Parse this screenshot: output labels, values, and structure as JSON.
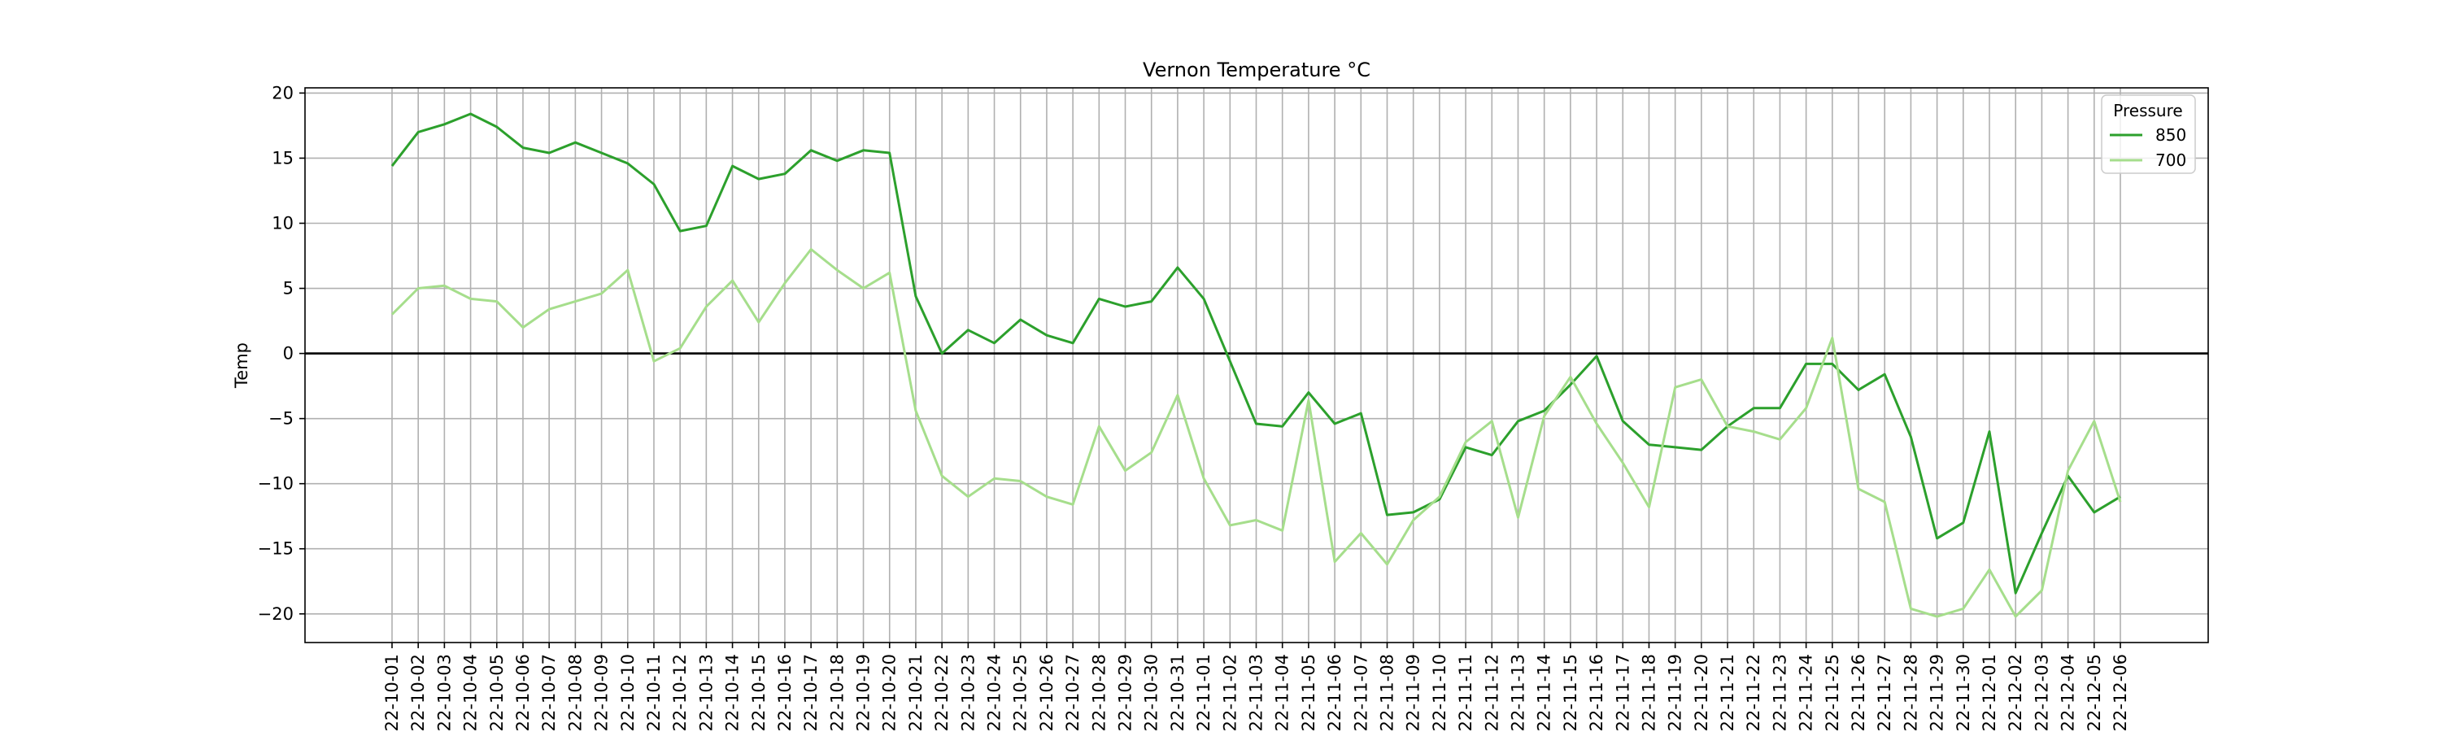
{
  "chart_data": {
    "type": "line",
    "title": "Vernon Temperature °C",
    "xlabel": "",
    "ylabel": "Temp",
    "ylim": [
      -22.2,
      20.4
    ],
    "yticks": [
      20,
      15,
      10,
      5,
      0,
      -5,
      -10,
      -15,
      -20
    ],
    "grid": true,
    "legend": {
      "title": "Pressure",
      "placement": "top-right"
    },
    "categories": [
      "22-10-01",
      "22-10-02",
      "22-10-03",
      "22-10-04",
      "22-10-05",
      "22-10-06",
      "22-10-07",
      "22-10-08",
      "22-10-09",
      "22-10-10",
      "22-10-11",
      "22-10-12",
      "22-10-13",
      "22-10-14",
      "22-10-15",
      "22-10-16",
      "22-10-17",
      "22-10-18",
      "22-10-19",
      "22-10-20",
      "22-10-21",
      "22-10-22",
      "22-10-23",
      "22-10-24",
      "22-10-25",
      "22-10-26",
      "22-10-27",
      "22-10-28",
      "22-10-29",
      "22-10-30",
      "22-10-31",
      "22-11-01",
      "22-11-02",
      "22-11-03",
      "22-11-04",
      "22-11-05",
      "22-11-06",
      "22-11-07",
      "22-11-08",
      "22-11-09",
      "22-11-10",
      "22-11-11",
      "22-11-12",
      "22-11-13",
      "22-11-14",
      "22-11-15",
      "22-11-16",
      "22-11-17",
      "22-11-18",
      "22-11-19",
      "22-11-20",
      "22-11-21",
      "22-11-22",
      "22-11-23",
      "22-11-24",
      "22-11-25",
      "22-11-26",
      "22-11-27",
      "22-11-28",
      "22-11-29",
      "22-11-30",
      "22-12-01",
      "22-12-02",
      "22-12-03",
      "22-12-04",
      "22-12-05",
      "22-12-06"
    ],
    "series": [
      {
        "name": "850",
        "color": "#2ca02c",
        "values": [
          14.4,
          17.0,
          17.6,
          18.4,
          17.4,
          15.8,
          15.4,
          16.2,
          15.4,
          14.6,
          13.0,
          9.4,
          9.8,
          14.4,
          13.4,
          13.8,
          15.6,
          14.8,
          15.6,
          15.4,
          4.4,
          0.0,
          1.8,
          0.8,
          2.6,
          1.4,
          0.8,
          4.2,
          3.6,
          4.0,
          6.6,
          4.2,
          -0.6,
          -5.4,
          -5.6,
          -3.0,
          -5.4,
          -4.6,
          -12.4,
          -12.2,
          -11.2,
          -7.2,
          -7.8,
          -5.2,
          -4.4,
          -2.4,
          -0.2,
          -5.2,
          -7.0,
          -7.2,
          -7.4,
          -5.6,
          -4.2,
          -4.2,
          -0.8,
          -0.8,
          -2.8,
          -1.6,
          -6.4,
          -14.2,
          -13.0,
          -6.0,
          -18.4,
          -13.8,
          -9.4,
          -12.2,
          -11.0
        ]
      },
      {
        "name": "700",
        "color": "#a6de8c",
        "values": [
          3.0,
          5.0,
          5.2,
          4.2,
          4.0,
          2.0,
          3.4,
          4.0,
          4.6,
          6.4,
          -0.6,
          0.4,
          3.6,
          5.6,
          2.4,
          5.4,
          8.0,
          6.4,
          5.0,
          6.2,
          -4.4,
          -9.4,
          -11.0,
          -9.6,
          -9.8,
          -11.0,
          -11.6,
          -5.6,
          -9.0,
          -7.6,
          -3.2,
          -9.6,
          -13.2,
          -12.8,
          -13.6,
          -3.6,
          -16.0,
          -13.8,
          -16.2,
          -12.8,
          -11.0,
          -6.8,
          -5.2,
          -12.6,
          -4.8,
          -1.8,
          -5.4,
          -8.4,
          -11.8,
          -2.6,
          -2.0,
          -5.6,
          -6.0,
          -6.6,
          -4.2,
          1.2,
          -10.4,
          -11.4,
          -19.6,
          -20.2,
          -19.6,
          -16.6,
          -20.2,
          -18.2,
          -9.0,
          -5.2,
          -11.4
        ]
      }
    ]
  }
}
